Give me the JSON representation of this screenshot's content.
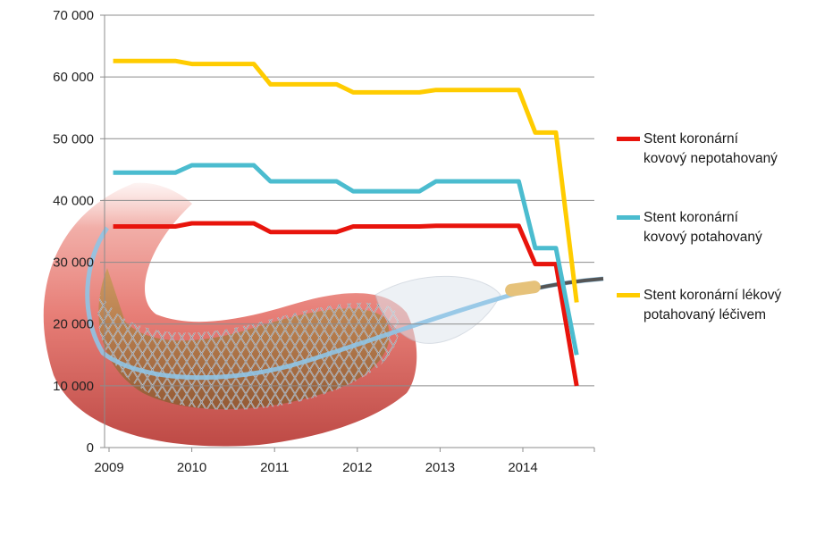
{
  "chart_data": {
    "type": "line",
    "title": "",
    "xlabel": "",
    "ylabel": "",
    "xlim": [
      2009,
      2014.8
    ],
    "ylim": [
      0,
      70000
    ],
    "x_ticks": [
      2009,
      2010,
      2011,
      2012,
      2013,
      2014
    ],
    "x_tick_labels": [
      "2009",
      "2010",
      "2011",
      "2012",
      "2013",
      "2014"
    ],
    "y_ticks": [
      0,
      10000,
      20000,
      30000,
      40000,
      50000,
      60000,
      70000
    ],
    "y_tick_labels": [
      "0",
      "10 000",
      "20 000",
      "30 000",
      "40 000",
      "50 000",
      "60 000",
      "70 000"
    ],
    "grid": "horizontal",
    "legend_position": "right",
    "background_image": "coronary-stent-in-artery",
    "series": [
      {
        "name": "Stent koronární kovový nepotahovaný",
        "color": "#e8140c",
        "points": [
          [
            2009.05,
            35800
          ],
          [
            2009.8,
            35800
          ],
          [
            2010.0,
            36300
          ],
          [
            2010.75,
            36300
          ],
          [
            2010.95,
            34900
          ],
          [
            2011.75,
            34900
          ],
          [
            2011.95,
            35800
          ],
          [
            2012.75,
            35800
          ],
          [
            2012.95,
            35900
          ],
          [
            2013.95,
            35900
          ],
          [
            2014.15,
            29700
          ],
          [
            2014.4,
            29700
          ],
          [
            2014.65,
            10000
          ]
        ]
      },
      {
        "name": "Stent koronární kovový potahovaný",
        "color": "#4bbccf",
        "points": [
          [
            2009.05,
            44500
          ],
          [
            2009.8,
            44500
          ],
          [
            2010.0,
            45700
          ],
          [
            2010.75,
            45700
          ],
          [
            2010.95,
            43100
          ],
          [
            2011.75,
            43100
          ],
          [
            2011.95,
            41500
          ],
          [
            2012.75,
            41500
          ],
          [
            2012.95,
            43100
          ],
          [
            2013.95,
            43100
          ],
          [
            2014.15,
            32300
          ],
          [
            2014.4,
            32300
          ],
          [
            2014.65,
            15000
          ]
        ]
      },
      {
        "name": "Stent koronární lékový potahovaný léčivem",
        "color": "#ffcc00",
        "points": [
          [
            2009.05,
            62600
          ],
          [
            2009.8,
            62600
          ],
          [
            2010.0,
            62100
          ],
          [
            2010.75,
            62100
          ],
          [
            2010.95,
            58800
          ],
          [
            2011.75,
            58800
          ],
          [
            2011.95,
            57500
          ],
          [
            2012.75,
            57500
          ],
          [
            2012.95,
            57900
          ],
          [
            2013.95,
            57900
          ],
          [
            2014.15,
            51000
          ],
          [
            2014.4,
            51000
          ],
          [
            2014.65,
            23500
          ]
        ]
      }
    ],
    "legend": [
      {
        "lines": [
          "Stent koronární",
          "kovový nepotahovaný"
        ],
        "color": "#e8140c"
      },
      {
        "lines": [
          "Stent koronární",
          "kovový potahovaný"
        ],
        "color": "#4bbccf"
      },
      {
        "lines": [
          "Stent koronární lékový",
          "potahovaný léčivem"
        ],
        "color": "#ffcc00"
      }
    ]
  }
}
